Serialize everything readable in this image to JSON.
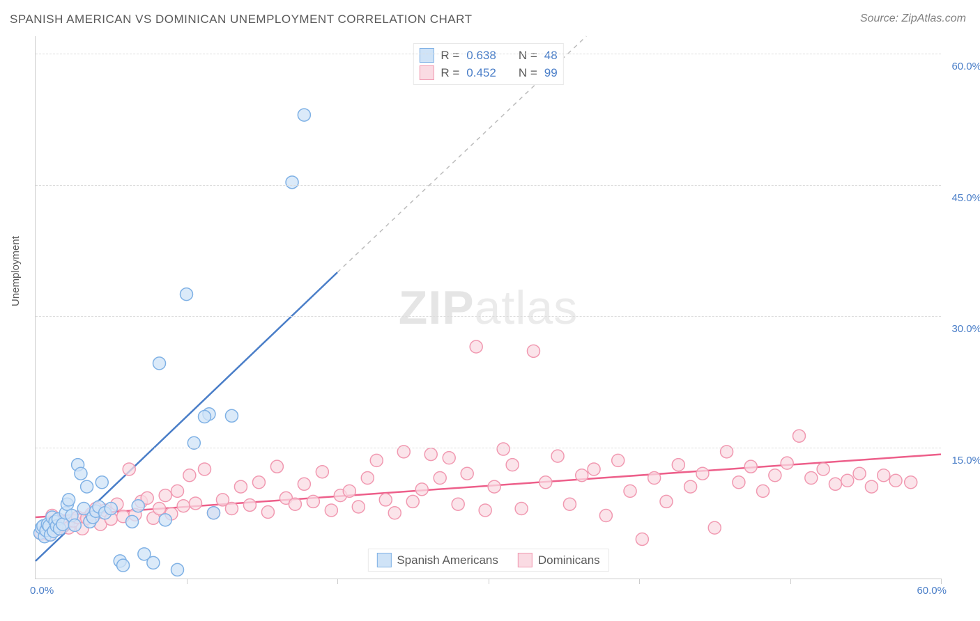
{
  "title": "SPANISH AMERICAN VS DOMINICAN UNEMPLOYMENT CORRELATION CHART",
  "source": "Source: ZipAtlas.com",
  "ylabel": "Unemployment",
  "watermark_bold": "ZIP",
  "watermark_light": "atlas",
  "chart": {
    "type": "scatter",
    "x_min": 0,
    "x_max": 60,
    "y_min": 0,
    "y_max": 62,
    "x_start_label": "0.0%",
    "x_end_label": "60.0%",
    "y_ticks": [
      15,
      30,
      45,
      60
    ],
    "y_tick_labels": [
      "15.0%",
      "30.0%",
      "45.0%",
      "60.0%"
    ],
    "x_tick_positions": [
      0,
      10,
      20,
      30,
      40,
      50,
      60
    ],
    "background_color": "#ffffff",
    "grid_color": "#dcdcdc",
    "axis_color": "#cccccc",
    "axis_label_color": "#4a7ec8",
    "text_color": "#5a5a5a",
    "marker_radius": 9,
    "marker_stroke_width": 1.5,
    "trend_stroke_width": 2.5,
    "title_fontsize": 17,
    "label_fontsize": 15
  },
  "series": [
    {
      "key": "spanish_americans",
      "label": "Spanish Americans",
      "fill": "#cfe3f7",
      "stroke": "#7fb1e5",
      "trend_color": "#4a7ec8",
      "R": "0.638",
      "N": "48",
      "trend": {
        "x1": 0,
        "y1": 2.0,
        "x2": 20.0,
        "y2": 35.0,
        "dash_to_x": 36.5,
        "dash_to_y": 62.0
      },
      "points": [
        [
          0.3,
          5.2
        ],
        [
          0.4,
          5.8
        ],
        [
          0.5,
          6.0
        ],
        [
          0.6,
          4.8
        ],
        [
          0.7,
          5.5
        ],
        [
          0.8,
          6.2
        ],
        [
          0.9,
          6.0
        ],
        [
          1.0,
          5.0
        ],
        [
          1.1,
          7.0
        ],
        [
          1.2,
          5.4
        ],
        [
          1.3,
          6.5
        ],
        [
          1.4,
          6.0
        ],
        [
          1.5,
          6.8
        ],
        [
          1.6,
          5.7
        ],
        [
          1.8,
          6.2
        ],
        [
          2.0,
          7.5
        ],
        [
          2.1,
          8.5
        ],
        [
          2.2,
          9.0
        ],
        [
          2.4,
          7.2
        ],
        [
          2.6,
          6.1
        ],
        [
          2.8,
          13.0
        ],
        [
          3.0,
          12.0
        ],
        [
          3.2,
          8.0
        ],
        [
          3.4,
          10.5
        ],
        [
          3.6,
          6.5
        ],
        [
          3.8,
          7.0
        ],
        [
          4.0,
          7.7
        ],
        [
          4.2,
          8.2
        ],
        [
          4.4,
          11.0
        ],
        [
          4.6,
          7.5
        ],
        [
          5.0,
          8.0
        ],
        [
          5.6,
          2.0
        ],
        [
          5.8,
          1.5
        ],
        [
          6.4,
          6.5
        ],
        [
          6.8,
          8.3
        ],
        [
          7.2,
          2.8
        ],
        [
          7.8,
          1.8
        ],
        [
          8.2,
          24.6
        ],
        [
          8.6,
          6.7
        ],
        [
          9.4,
          1.0
        ],
        [
          10.0,
          32.5
        ],
        [
          10.5,
          15.5
        ],
        [
          11.5,
          18.8
        ],
        [
          11.8,
          7.5
        ],
        [
          13.0,
          18.6
        ],
        [
          17.0,
          45.3
        ],
        [
          17.8,
          53.0
        ],
        [
          11.2,
          18.5
        ]
      ]
    },
    {
      "key": "dominicans",
      "label": "Dominicans",
      "fill": "#fadbe3",
      "stroke": "#f199b1",
      "trend_color": "#ed5f8a",
      "R": "0.452",
      "N": "99",
      "trend": {
        "x1": 0,
        "y1": 7.0,
        "x2": 60.0,
        "y2": 14.2
      },
      "points": [
        [
          0.4,
          5.1
        ],
        [
          0.6,
          5.5
        ],
        [
          0.9,
          5.0
        ],
        [
          1.1,
          7.2
        ],
        [
          1.4,
          5.6
        ],
        [
          1.6,
          6.0
        ],
        [
          1.9,
          6.4
        ],
        [
          2.2,
          5.8
        ],
        [
          2.5,
          6.6
        ],
        [
          2.8,
          7.0
        ],
        [
          3.1,
          5.7
        ],
        [
          3.4,
          6.9
        ],
        [
          3.7,
          7.4
        ],
        [
          4.0,
          8.0
        ],
        [
          4.3,
          6.2
        ],
        [
          4.6,
          7.8
        ],
        [
          5.0,
          6.8
        ],
        [
          5.4,
          8.5
        ],
        [
          5.8,
          7.1
        ],
        [
          6.2,
          12.5
        ],
        [
          6.6,
          7.3
        ],
        [
          7.0,
          8.8
        ],
        [
          7.4,
          9.2
        ],
        [
          7.8,
          6.9
        ],
        [
          8.2,
          8.0
        ],
        [
          8.6,
          9.5
        ],
        [
          9.0,
          7.4
        ],
        [
          9.4,
          10.0
        ],
        [
          9.8,
          8.3
        ],
        [
          10.2,
          11.8
        ],
        [
          10.6,
          8.6
        ],
        [
          11.2,
          12.5
        ],
        [
          11.8,
          7.5
        ],
        [
          12.4,
          9.0
        ],
        [
          13.0,
          8.0
        ],
        [
          13.6,
          10.5
        ],
        [
          14.2,
          8.4
        ],
        [
          14.8,
          11.0
        ],
        [
          15.4,
          7.6
        ],
        [
          16.0,
          12.8
        ],
        [
          16.6,
          9.2
        ],
        [
          17.2,
          8.5
        ],
        [
          17.8,
          10.8
        ],
        [
          18.4,
          8.8
        ],
        [
          19.0,
          12.2
        ],
        [
          19.6,
          7.8
        ],
        [
          20.2,
          9.5
        ],
        [
          20.8,
          10.0
        ],
        [
          21.4,
          8.2
        ],
        [
          22.0,
          11.5
        ],
        [
          22.6,
          13.5
        ],
        [
          23.2,
          9.0
        ],
        [
          23.8,
          7.5
        ],
        [
          24.4,
          14.5
        ],
        [
          25.0,
          8.8
        ],
        [
          25.6,
          10.2
        ],
        [
          26.2,
          14.2
        ],
        [
          26.8,
          11.5
        ],
        [
          27.4,
          13.8
        ],
        [
          28.0,
          8.5
        ],
        [
          28.6,
          12.0
        ],
        [
          29.2,
          26.5
        ],
        [
          29.8,
          7.8
        ],
        [
          30.4,
          10.5
        ],
        [
          31.0,
          14.8
        ],
        [
          31.6,
          13.0
        ],
        [
          32.2,
          8.0
        ],
        [
          33.0,
          26.0
        ],
        [
          33.8,
          11.0
        ],
        [
          34.6,
          14.0
        ],
        [
          35.4,
          8.5
        ],
        [
          36.2,
          11.8
        ],
        [
          37.0,
          12.5
        ],
        [
          37.8,
          7.2
        ],
        [
          38.6,
          13.5
        ],
        [
          39.4,
          10.0
        ],
        [
          40.2,
          4.5
        ],
        [
          41.0,
          11.5
        ],
        [
          41.8,
          8.8
        ],
        [
          42.6,
          13.0
        ],
        [
          43.4,
          10.5
        ],
        [
          44.2,
          12.0
        ],
        [
          45.0,
          5.8
        ],
        [
          45.8,
          14.5
        ],
        [
          46.6,
          11.0
        ],
        [
          47.4,
          12.8
        ],
        [
          48.2,
          10.0
        ],
        [
          49.0,
          11.8
        ],
        [
          49.8,
          13.2
        ],
        [
          50.6,
          16.3
        ],
        [
          51.4,
          11.5
        ],
        [
          52.2,
          12.5
        ],
        [
          53.0,
          10.8
        ],
        [
          53.8,
          11.2
        ],
        [
          54.6,
          12.0
        ],
        [
          55.4,
          10.5
        ],
        [
          56.2,
          11.8
        ],
        [
          57.0,
          11.2
        ],
        [
          58.0,
          11.0
        ]
      ]
    }
  ],
  "legend": {
    "stats_prefix_r": "R = ",
    "stats_prefix_n": "N = "
  }
}
